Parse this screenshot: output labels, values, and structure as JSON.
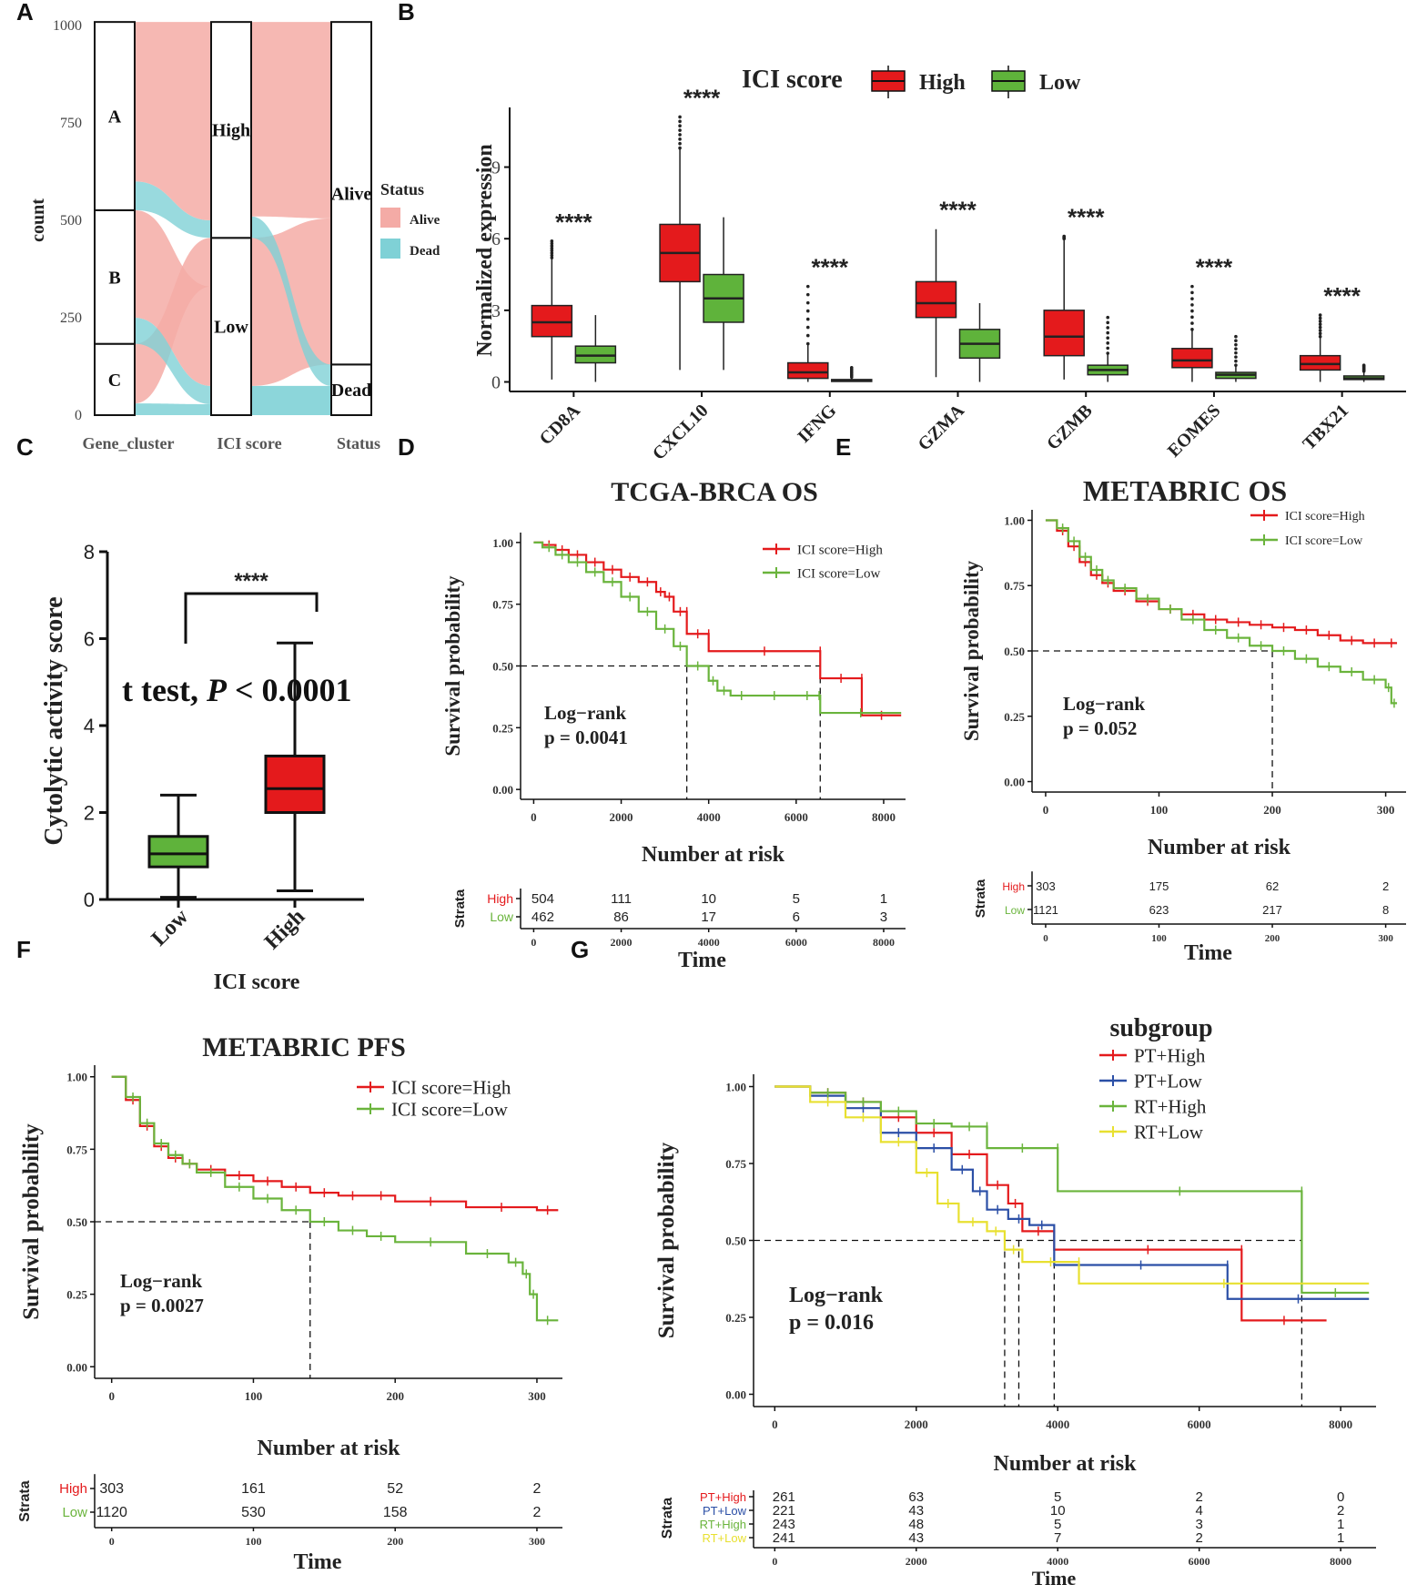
{
  "panel_labels": {
    "A": "A",
    "B": "B",
    "C": "C",
    "D": "D",
    "E": "E",
    "F": "F",
    "G": "G"
  },
  "colors": {
    "red": "#e41a1c",
    "green": "#6ab43c",
    "blue": "#2b4fa6",
    "yellow": "#e8e030",
    "alive": "#f4aba6",
    "dead": "#7fd1d6",
    "boxred": "#e41a1c",
    "boxgreen": "#5fb33b"
  },
  "chart_data": [
    {
      "id": "A",
      "type": "alluvial",
      "ylabel": "count",
      "yticks": [
        0,
        250,
        500,
        750,
        1000
      ],
      "ylim": [
        0,
        1000
      ],
      "axes": [
        "Gene_cluster",
        "ICI score",
        "Status"
      ],
      "stratum_labels": {
        "A": "A",
        "B": "B",
        "C": "C",
        "High": "High",
        "Low": "Low",
        "Alive": "Alive",
        "Dead": "Dead"
      },
      "strata": {
        "gene_cluster": [
          {
            "name": "C",
            "count": 183
          },
          {
            "name": "B",
            "count": 343
          },
          {
            "name": "A",
            "count": 483
          }
        ],
        "ici": [
          {
            "name": "Low",
            "count": 455
          },
          {
            "name": "High",
            "count": 554
          }
        ],
        "status": [
          {
            "name": "Dead",
            "count": 130
          },
          {
            "name": "Alive",
            "count": 879
          }
        ]
      },
      "legend": {
        "title": "Status",
        "items": [
          "Alive",
          "Dead"
        ]
      }
    },
    {
      "id": "B",
      "type": "boxplot",
      "ylabel": "Normalized expression",
      "yticks": [
        0,
        3,
        6,
        9
      ],
      "ylim": [
        -0.4,
        11.5
      ],
      "legend": {
        "title": "ICI score",
        "items": [
          "High",
          "Low"
        ]
      },
      "significance": "****",
      "categories": [
        "CD8A",
        "CXCL10",
        "IFNG",
        "GZMA",
        "GZMB",
        "EOMES",
        "TBX21"
      ],
      "series": [
        {
          "name": "High",
          "boxes": [
            [
              0.1,
              1.9,
              2.5,
              3.2,
              5.2,
              5.9
            ],
            [
              0.5,
              4.2,
              5.4,
              6.6,
              9.8,
              11.1
            ],
            [
              0,
              0.15,
              0.4,
              0.8,
              1.6,
              4.0
            ],
            [
              0.2,
              2.7,
              3.3,
              4.2,
              6.4,
              6.4
            ],
            [
              0.1,
              1.1,
              1.9,
              3.0,
              6.0,
              6.1
            ],
            [
              0,
              0.6,
              0.9,
              1.4,
              2.2,
              4.0
            ],
            [
              0,
              0.5,
              0.75,
              1.1,
              1.9,
              2.8
            ]
          ]
        },
        {
          "name": "Low",
          "boxes": [
            [
              0,
              0.8,
              1.1,
              1.5,
              2.8,
              2.8
            ],
            [
              0.5,
              2.5,
              3.5,
              4.5,
              6.9,
              6.9
            ],
            [
              0,
              0.02,
              0.05,
              0.1,
              0.2,
              0.6
            ],
            [
              0,
              1.0,
              1.6,
              2.2,
              3.3,
              3.3
            ],
            [
              0,
              0.3,
              0.5,
              0.7,
              1.2,
              2.7
            ],
            [
              0,
              0.15,
              0.3,
              0.4,
              0.7,
              1.9
            ],
            [
              0,
              0.1,
              0.15,
              0.25,
              0.45,
              0.7
            ]
          ]
        }
      ]
    },
    {
      "id": "C",
      "type": "boxplot",
      "ylabel": "Cytolytic activity score",
      "xlabel": "ICI score",
      "yticks": [
        0,
        2,
        4,
        6,
        8
      ],
      "ylim": [
        0,
        8
      ],
      "categories": [
        "Low",
        "High"
      ],
      "boxes": [
        [
          0.05,
          0.75,
          1.05,
          1.45,
          2.4
        ],
        [
          0.2,
          2.0,
          2.55,
          3.3,
          5.9
        ]
      ],
      "significance": "****",
      "annotation_prefix": "t test, ",
      "annotation_P": "P",
      "annotation_suffix": " < 0.0001"
    },
    {
      "id": "D",
      "type": "line",
      "title": "TCGA-BRCA OS",
      "ylabel": "Survival probability",
      "xlabel": "Time",
      "yticks": [
        "0.00",
        "0.25",
        "0.50",
        "0.75",
        "1.00"
      ],
      "xticks": [
        0,
        2000,
        4000,
        6000,
        8000
      ],
      "xlim": [
        -300,
        8500
      ],
      "legend": [
        "ICI score=High",
        "ICI score=Low"
      ],
      "logrank": "Log−rank",
      "pvalue": "p = 0.0041",
      "median_lines": [
        3500,
        6550
      ],
      "series": [
        {
          "name": "High",
          "x": [
            0,
            200,
            500,
            800,
            1200,
            1600,
            2000,
            2400,
            2800,
            3000,
            3200,
            3500,
            3500,
            4000,
            4000,
            6550,
            6550,
            7500,
            7500,
            8400
          ],
          "y": [
            1,
            0.99,
            0.97,
            0.95,
            0.92,
            0.89,
            0.86,
            0.84,
            0.8,
            0.78,
            0.72,
            0.72,
            0.63,
            0.63,
            0.56,
            0.56,
            0.45,
            0.45,
            0.3,
            0.3
          ]
        },
        {
          "name": "Low",
          "x": [
            0,
            200,
            500,
            800,
            1200,
            1600,
            2000,
            2400,
            2800,
            3200,
            3500,
            4000,
            4200,
            4500,
            5000,
            6000,
            6500,
            6550,
            8400
          ],
          "y": [
            1,
            0.98,
            0.95,
            0.92,
            0.88,
            0.84,
            0.78,
            0.72,
            0.65,
            0.58,
            0.5,
            0.44,
            0.4,
            0.38,
            0.38,
            0.38,
            0.38,
            0.31,
            0.31
          ]
        }
      ],
      "risk_title": "Number at risk",
      "risk_strata_label": "Strata",
      "risk_rows": [
        {
          "name": "High",
          "values": [
            "504",
            "111",
            "10",
            "5",
            "1"
          ]
        },
        {
          "name": "Low",
          "values": [
            "462",
            "86",
            "17",
            "6",
            "3"
          ]
        }
      ]
    },
    {
      "id": "E",
      "type": "line",
      "title": "METABRIC OS",
      "ylabel": "Survival probability",
      "xlabel": "Time",
      "yticks": [
        "0.00",
        "0.25",
        "0.50",
        "0.75",
        "1.00"
      ],
      "xticks": [
        0,
        100,
        200,
        300
      ],
      "xlim": [
        -12,
        318
      ],
      "legend": [
        "ICI score=High",
        "ICI score=Low"
      ],
      "logrank": "Log−rank",
      "pvalue": "p = 0.052",
      "median_lines": [
        200
      ],
      "series": [
        {
          "name": "High",
          "x": [
            0,
            10,
            20,
            30,
            40,
            50,
            60,
            80,
            100,
            120,
            140,
            160,
            180,
            200,
            220,
            240,
            260,
            280,
            300,
            310
          ],
          "y": [
            1,
            0.96,
            0.9,
            0.84,
            0.79,
            0.76,
            0.73,
            0.69,
            0.66,
            0.64,
            0.62,
            0.61,
            0.6,
            0.59,
            0.58,
            0.56,
            0.54,
            0.53,
            0.53,
            0.53
          ]
        },
        {
          "name": "Low",
          "x": [
            0,
            10,
            20,
            30,
            40,
            50,
            60,
            80,
            100,
            120,
            140,
            160,
            180,
            200,
            220,
            240,
            260,
            280,
            300,
            305,
            310
          ],
          "y": [
            1,
            0.97,
            0.92,
            0.86,
            0.81,
            0.77,
            0.74,
            0.7,
            0.66,
            0.62,
            0.58,
            0.55,
            0.52,
            0.5,
            0.47,
            0.44,
            0.42,
            0.39,
            0.36,
            0.3,
            0.3
          ]
        }
      ],
      "risk_title": "Number at risk",
      "risk_strata_label": "Strata",
      "risk_rows": [
        {
          "name": "High",
          "values": [
            "303",
            "175",
            "62",
            "2"
          ]
        },
        {
          "name": "Low",
          "values": [
            "1121",
            "623",
            "217",
            "8"
          ]
        }
      ]
    },
    {
      "id": "F",
      "type": "line",
      "title": "METABRIC PFS",
      "ylabel": "Survival probability",
      "xlabel": "Time",
      "yticks": [
        "0.00",
        "0.25",
        "0.50",
        "0.75",
        "1.00"
      ],
      "xticks": [
        0,
        100,
        200,
        300
      ],
      "xlim": [
        -12,
        318
      ],
      "legend": [
        "ICI score=High",
        "ICI score=Low"
      ],
      "logrank": "Log−rank",
      "pvalue": "p = 0.0027",
      "median_lines": [
        140
      ],
      "series": [
        {
          "name": "High",
          "x": [
            0,
            10,
            20,
            30,
            40,
            50,
            60,
            80,
            100,
            120,
            140,
            160,
            180,
            200,
            250,
            300,
            315
          ],
          "y": [
            1,
            0.92,
            0.83,
            0.76,
            0.72,
            0.7,
            0.68,
            0.66,
            0.64,
            0.62,
            0.6,
            0.59,
            0.59,
            0.57,
            0.55,
            0.54,
            0.54
          ]
        },
        {
          "name": "Low",
          "x": [
            0,
            10,
            20,
            30,
            40,
            50,
            60,
            80,
            100,
            120,
            140,
            160,
            180,
            200,
            250,
            280,
            290,
            295,
            300,
            315
          ],
          "y": [
            1,
            0.93,
            0.84,
            0.77,
            0.73,
            0.7,
            0.67,
            0.62,
            0.58,
            0.54,
            0.5,
            0.47,
            0.45,
            0.43,
            0.39,
            0.36,
            0.32,
            0.25,
            0.16,
            0.16
          ]
        }
      ],
      "risk_title": "Number at risk",
      "risk_strata_label": "Strata",
      "risk_rows": [
        {
          "name": "High",
          "values": [
            "303",
            "161",
            "52",
            "2"
          ]
        },
        {
          "name": "Low",
          "values": [
            "1120",
            "530",
            "158",
            "2"
          ]
        }
      ]
    },
    {
      "id": "G",
      "type": "line",
      "legend_title": "subgroup",
      "ylabel": "Survival probability",
      "xlabel": "Time",
      "yticks": [
        "0.00",
        "0.25",
        "0.50",
        "0.75",
        "1.00"
      ],
      "xticks": [
        0,
        2000,
        4000,
        6000,
        8000
      ],
      "xlim": [
        -300,
        8500
      ],
      "legend": [
        "PT+High",
        "PT+Low",
        "RT+High",
        "RT+Low"
      ],
      "logrank": "Log−rank",
      "pvalue": "p = 0.016",
      "median_lines": [
        3250,
        3450,
        3950,
        7450
      ],
      "series": [
        {
          "name": "PT+High",
          "x": [
            0,
            500,
            1000,
            1500,
            2000,
            2500,
            3000,
            3300,
            3500,
            3500,
            3950,
            3950,
            6600,
            6600,
            7800
          ],
          "y": [
            1,
            0.98,
            0.95,
            0.9,
            0.85,
            0.78,
            0.68,
            0.62,
            0.58,
            0.53,
            0.53,
            0.47,
            0.47,
            0.24,
            0.24
          ]
        },
        {
          "name": "PT+Low",
          "x": [
            0,
            500,
            1000,
            1500,
            2000,
            2500,
            2800,
            3000,
            3300,
            3600,
            3950,
            3950,
            6400,
            6400,
            8400
          ],
          "y": [
            1,
            0.97,
            0.93,
            0.85,
            0.8,
            0.73,
            0.66,
            0.6,
            0.57,
            0.55,
            0.48,
            0.42,
            0.42,
            0.31,
            0.31
          ]
        },
        {
          "name": "RT+High",
          "x": [
            0,
            500,
            1000,
            1500,
            2000,
            2500,
            3000,
            3000,
            4000,
            4000,
            7450,
            7450,
            8400
          ],
          "y": [
            1,
            0.98,
            0.95,
            0.92,
            0.88,
            0.87,
            0.87,
            0.8,
            0.8,
            0.66,
            0.66,
            0.33,
            0.33
          ]
        },
        {
          "name": "RT+Low",
          "x": [
            0,
            500,
            1000,
            1500,
            2000,
            2300,
            2600,
            3000,
            3250,
            3500,
            4300,
            4300,
            8400
          ],
          "y": [
            1,
            0.95,
            0.9,
            0.82,
            0.72,
            0.62,
            0.56,
            0.53,
            0.47,
            0.43,
            0.43,
            0.36,
            0.36
          ]
        }
      ],
      "risk_title": "Number at risk",
      "risk_strata_label": "Strata",
      "risk_rows": [
        {
          "name": "PT+High",
          "values": [
            "261",
            "63",
            "5",
            "2",
            "0"
          ]
        },
        {
          "name": "PT+Low",
          "values": [
            "221",
            "43",
            "10",
            "4",
            "2"
          ]
        },
        {
          "name": "RT+High",
          "values": [
            "243",
            "48",
            "5",
            "3",
            "1"
          ]
        },
        {
          "name": "RT+Low",
          "values": [
            "241",
            "43",
            "7",
            "2",
            "1"
          ]
        }
      ]
    }
  ]
}
